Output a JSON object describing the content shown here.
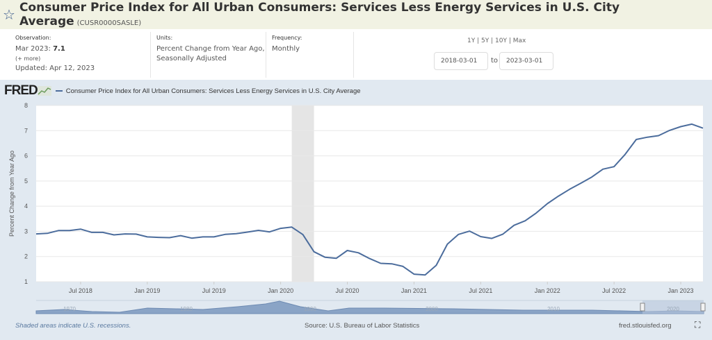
{
  "header": {
    "title": "Consumer Price Index for All Urban Consumers: Services Less Energy Services in U.S. City Average",
    "series_id": "(CUSR0000SASLE)",
    "star_icon": "star-outline"
  },
  "info": {
    "observation": {
      "label": "Observation:",
      "value_prefix": "Mar 2023:",
      "value": "7.1",
      "more": "(+ more)",
      "updated": "Updated: Apr 12, 2023"
    },
    "units": {
      "label": "Units:",
      "line1": "Percent Change from Year Ago,",
      "line2": "Seasonally Adjusted"
    },
    "frequency": {
      "label": "Frequency:",
      "value": "Monthly"
    },
    "ranges": [
      "1Y",
      "5Y",
      "10Y",
      "Max"
    ],
    "start_date": "2018-03-01",
    "to": "to",
    "end_date": "2023-03-01"
  },
  "legend": {
    "logo": "FRED",
    "text": "Consumer Price Index for All Urban Consumers: Services Less Energy Services in U.S. City Average"
  },
  "colors": {
    "line": "#4b6c9c",
    "recession": "#e5e5e5",
    "background": "#e1e9f1",
    "title_bar": "#f1f2e3"
  },
  "chart_data": {
    "type": "line",
    "ylabel": "Percent Change from Year Ago",
    "ylim": [
      1,
      8
    ],
    "yticks": [
      1,
      2,
      3,
      4,
      5,
      6,
      7,
      8
    ],
    "xlim": [
      "2018-03",
      "2023-03"
    ],
    "xtick_labels": [
      "Jul 2018",
      "Jan 2019",
      "Jul 2019",
      "Jan 2020",
      "Jul 2020",
      "Jan 2021",
      "Jul 2021",
      "Jan 2022",
      "Jul 2022",
      "Jan 2023"
    ],
    "xtick_months": [
      "2018-07",
      "2019-01",
      "2019-07",
      "2020-01",
      "2020-07",
      "2021-01",
      "2021-07",
      "2022-01",
      "2022-07",
      "2023-01"
    ],
    "grid": true,
    "recessions": [
      [
        "2020-02",
        "2020-04"
      ]
    ],
    "start": "2018-03",
    "frequency": "monthly",
    "values": [
      2.9,
      2.92,
      3.03,
      3.03,
      3.09,
      2.96,
      2.96,
      2.86,
      2.9,
      2.89,
      2.78,
      2.76,
      2.75,
      2.83,
      2.73,
      2.78,
      2.78,
      2.88,
      2.91,
      2.97,
      3.04,
      2.98,
      3.12,
      3.17,
      2.87,
      2.19,
      1.97,
      1.93,
      2.24,
      2.15,
      1.92,
      1.73,
      1.71,
      1.61,
      1.3,
      1.27,
      1.65,
      2.49,
      2.88,
      3.01,
      2.79,
      2.72,
      2.89,
      3.24,
      3.42,
      3.73,
      4.1,
      4.4,
      4.67,
      4.91,
      5.16,
      5.47,
      5.57,
      6.06,
      6.65,
      6.74,
      6.8,
      7.01,
      7.16,
      7.26,
      7.1
    ],
    "navigator_labels": [
      "1970",
      "1980",
      "1990",
      "2000",
      "2010",
      "2020"
    ]
  },
  "footer": {
    "recession_note": "Shaded areas indicate U.S. recessions.",
    "source": "Source: U.S. Bureau of Labor Statistics",
    "site": "fred.stlouisfed.org",
    "fullscreen_icon": "fullscreen"
  }
}
